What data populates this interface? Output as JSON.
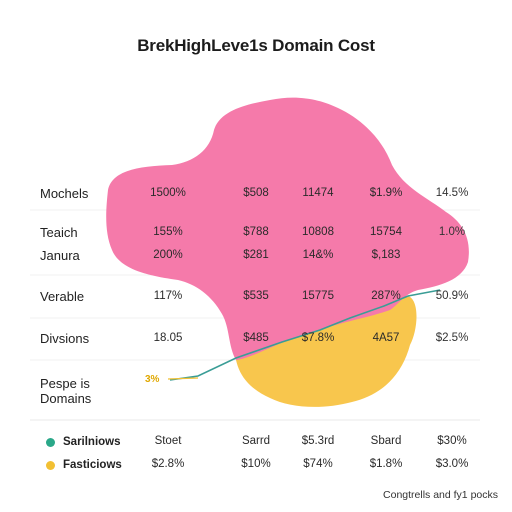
{
  "chart_data": {
    "type": "area",
    "title": "BrekHighLeve1s Domain Cost",
    "rows": [
      {
        "label": "Mochels",
        "cells": [
          "1500%",
          "$508",
          "11474",
          "$1.9%",
          "14.5%"
        ]
      },
      {
        "label": "Teaich",
        "cells": [
          "155%",
          "$788",
          "10808",
          "15754",
          "1.0%"
        ]
      },
      {
        "label": "Janura",
        "cells": [
          "200%",
          "$281",
          "14&%",
          "$,183",
          ""
        ]
      },
      {
        "label": "Verable",
        "cells": [
          "117%",
          "$535",
          "15775",
          "287%",
          "50.9%"
        ]
      },
      {
        "label": "Divsions",
        "cells": [
          "18.05",
          "$485",
          "$7.8%",
          "4A57",
          "$2.5%"
        ]
      },
      {
        "label": "Pespe is Domains",
        "cells": [
          "",
          "",
          "",
          "",
          ""
        ]
      }
    ],
    "series": [
      {
        "name": "Sarilniows",
        "color": "#2aa889",
        "values": [
          "Stoet",
          "Sarrd",
          "$5.3rd",
          "Sbard",
          "$30%"
        ]
      },
      {
        "name": "Fasticiows",
        "color": "#f2c033",
        "values": [
          "$2.8%",
          "$10%",
          "$74%",
          "$1.8%",
          "$3.0%"
        ]
      }
    ],
    "blob_colors": {
      "pink": "#f57aaa",
      "yellow": "#f8c64d",
      "line": "#3a9d96"
    },
    "annotation": "3%",
    "footnote": "Congtrells and fy1 pocks"
  }
}
